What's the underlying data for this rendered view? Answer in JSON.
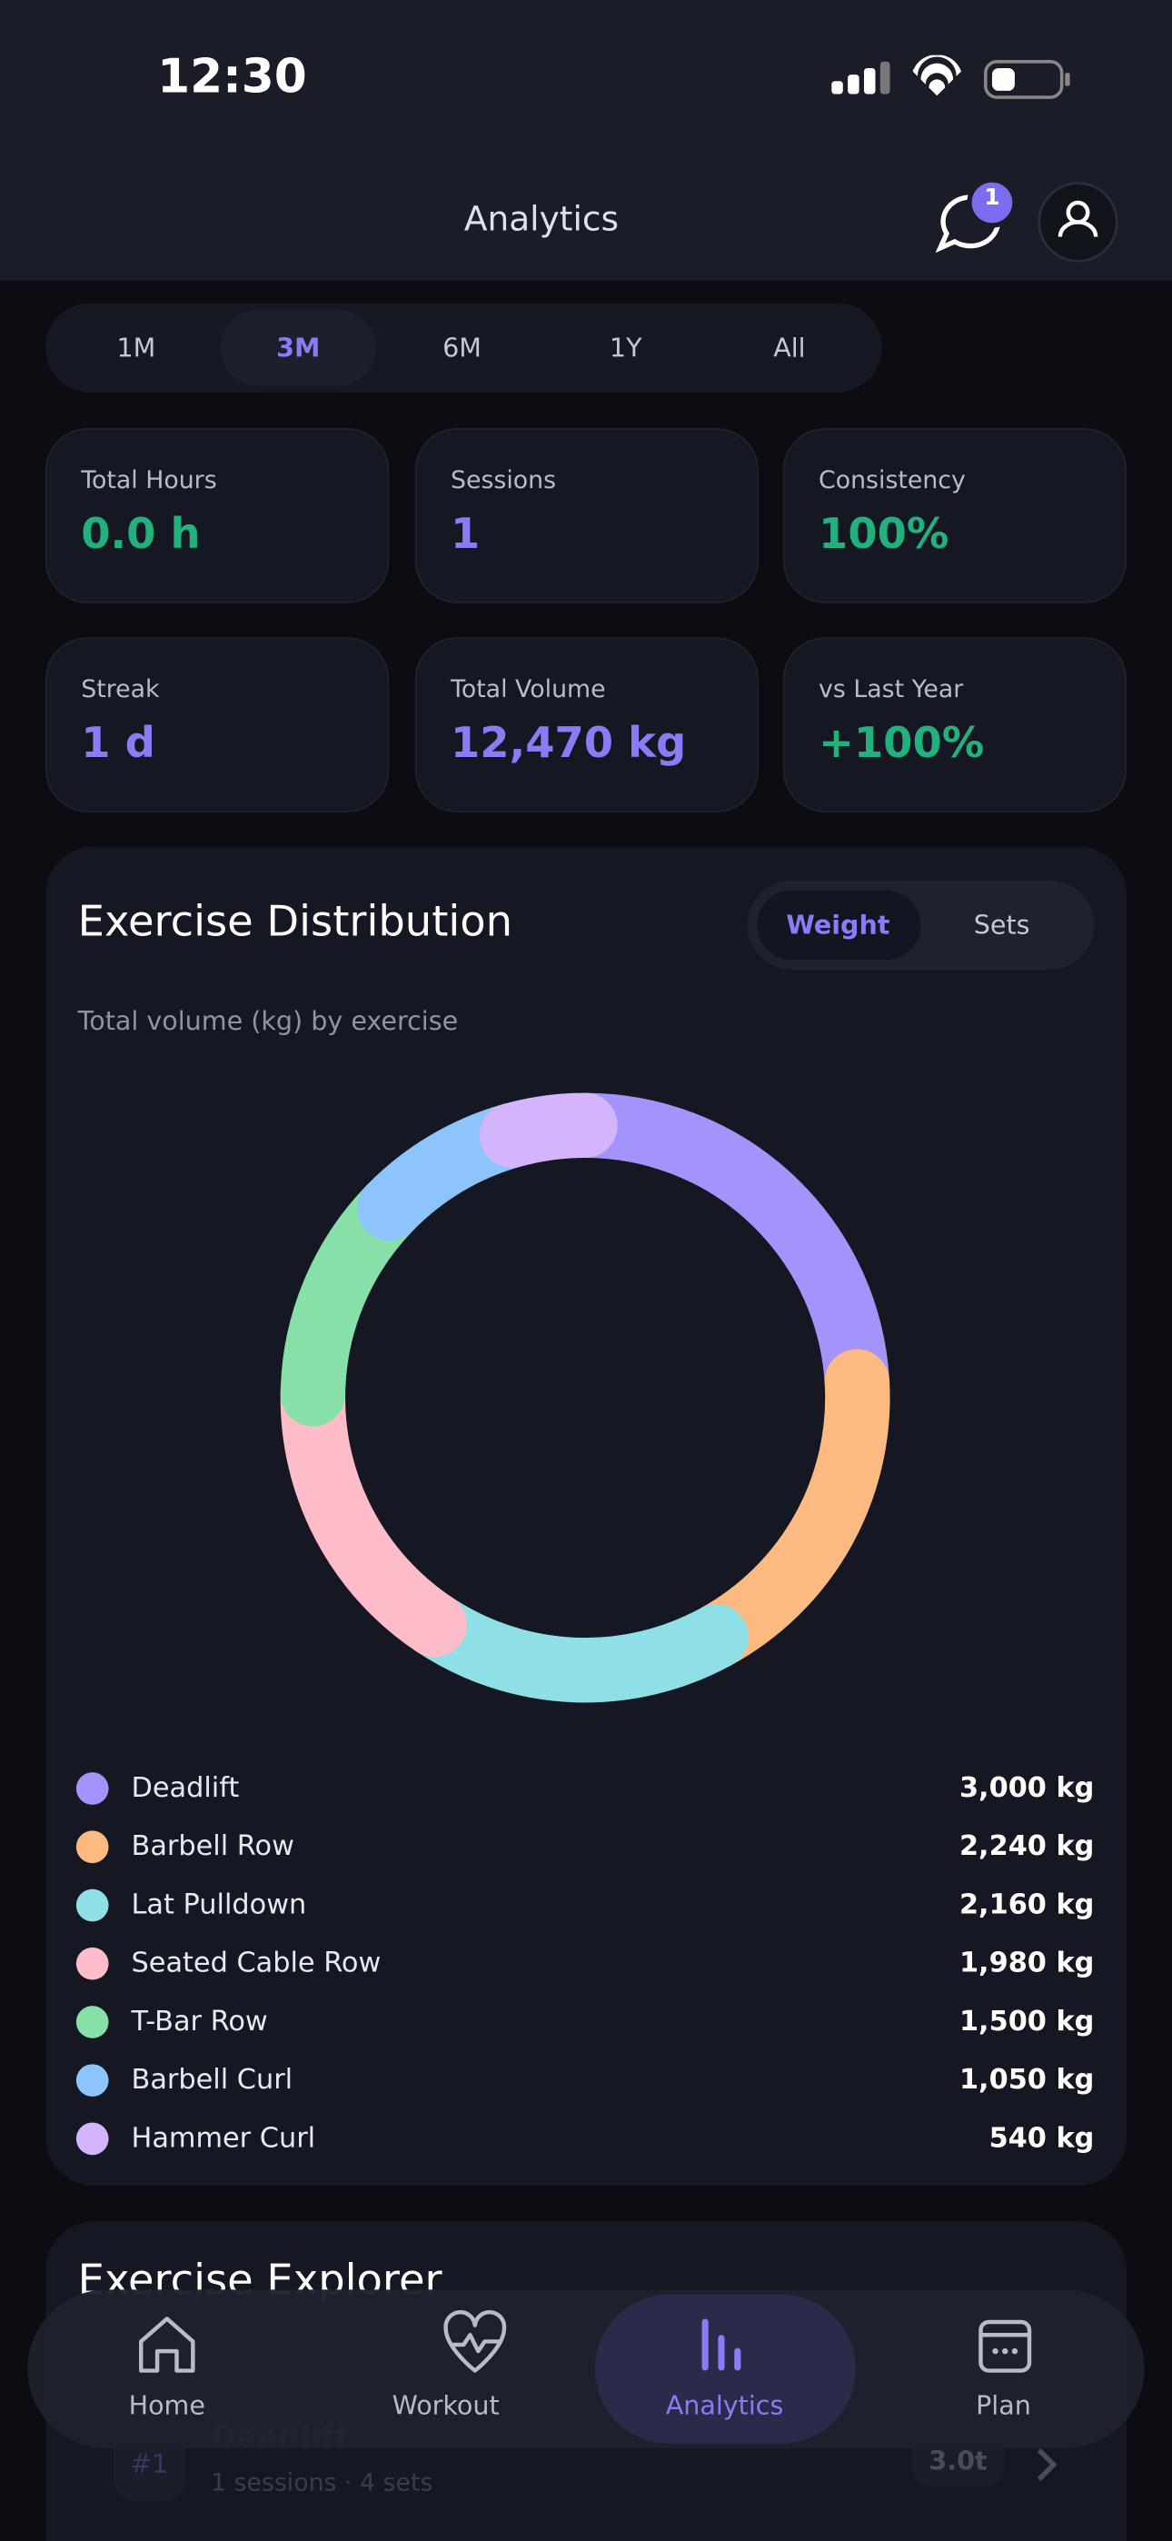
{
  "status_bar": {
    "time": "12:30"
  },
  "header": {
    "title": "Analytics",
    "badge": "1"
  },
  "periods": {
    "options": [
      "1M",
      "3M",
      "6M",
      "1Y",
      "All"
    ],
    "selected_index": 1
  },
  "stats": [
    {
      "label": "Total Hours",
      "value": "0.0 h",
      "color": "#22b07d"
    },
    {
      "label": "Sessions",
      "value": "1",
      "color": "#8b7cf6"
    },
    {
      "label": "Consistency",
      "value": "100%",
      "color": "#22b07d"
    },
    {
      "label": "Streak",
      "value": "1 d",
      "color": "#8b7cf6"
    },
    {
      "label": "Total Volume",
      "value": "12,470 kg",
      "color": "#8b7cf6"
    },
    {
      "label": "vs Last Year",
      "value": "+100%",
      "color": "#22b07d"
    }
  ],
  "distribution": {
    "title": "Exercise Distribution",
    "toggle": [
      "Weight",
      "Sets"
    ],
    "toggle_selected_index": 0,
    "subtitle": "Total volume (kg) by exercise",
    "chart": {
      "type": "donut",
      "categories": [
        "Deadlift",
        "Barbell Row",
        "Lat Pulldown",
        "Seated Cable Row",
        "T-Bar Row",
        "Barbell Curl",
        "Hammer Curl"
      ],
      "values": [
        3000,
        2240,
        2160,
        1980,
        1500,
        1050,
        540
      ],
      "value_labels": [
        "3,000 kg",
        "2,240 kg",
        "2,160 kg",
        "1,980 kg",
        "1,500 kg",
        "1,050 kg",
        "540 kg"
      ],
      "colors": [
        "#a394fb",
        "#fdba80",
        "#8fe0e6",
        "#fdbcc8",
        "#86e0a8",
        "#8cc4fb",
        "#d4b4fb"
      ]
    }
  },
  "explorer": {
    "title": "Exercise Explorer",
    "row": {
      "rank": "#1",
      "name": "Deadlift",
      "meta": "1 sessions · 4 sets",
      "value": "3.0t"
    }
  },
  "nav": {
    "items": [
      "Home",
      "Workout",
      "Analytics",
      "Plan"
    ],
    "selected_index": 2
  }
}
